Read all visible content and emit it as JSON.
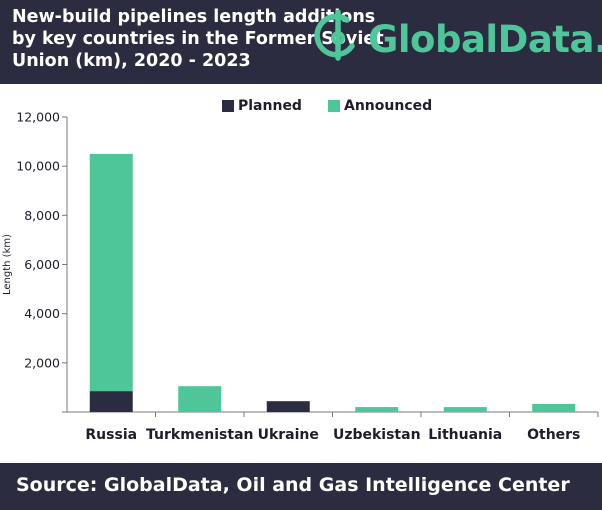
{
  "header": {
    "title_lines": [
      "New-build pipelines length additions",
      "by key countries in the Former Soviet",
      "Union (km), 2020 - 2023"
    ],
    "logo_text": "GlobalData."
  },
  "footer": {
    "source": "Source:  GlobalData, Oil and Gas Intelligence Center"
  },
  "colors": {
    "header_bg": "#2b2c3f",
    "planned": "#2b2c3f",
    "announced": "#4fc59a",
    "brand": "#4fc59a"
  },
  "icons": {
    "logo": "globaldata-logo-icon"
  },
  "chart_data": {
    "type": "bar",
    "stacked": true,
    "categories": [
      "Russia",
      "Turkmenistan",
      "Ukraine",
      "Uzbekistan",
      "Lithuania",
      "Others"
    ],
    "series": [
      {
        "name": "Planned",
        "values": [
          850,
          0,
          440,
          0,
          0,
          0
        ]
      },
      {
        "name": "Announced",
        "values": [
          9650,
          1050,
          0,
          200,
          200,
          330
        ]
      }
    ],
    "ylabel": "Length (km)",
    "xlabel": "",
    "ylim": [
      0,
      12000
    ],
    "yticks": [
      0,
      2000,
      4000,
      6000,
      8000,
      10000,
      12000
    ],
    "ytick_labels": [
      "",
      "2,000",
      "4,000",
      "6,000",
      "8,000",
      "10,000",
      "12,000"
    ],
    "legend_position": "top-center",
    "grid": false
  }
}
